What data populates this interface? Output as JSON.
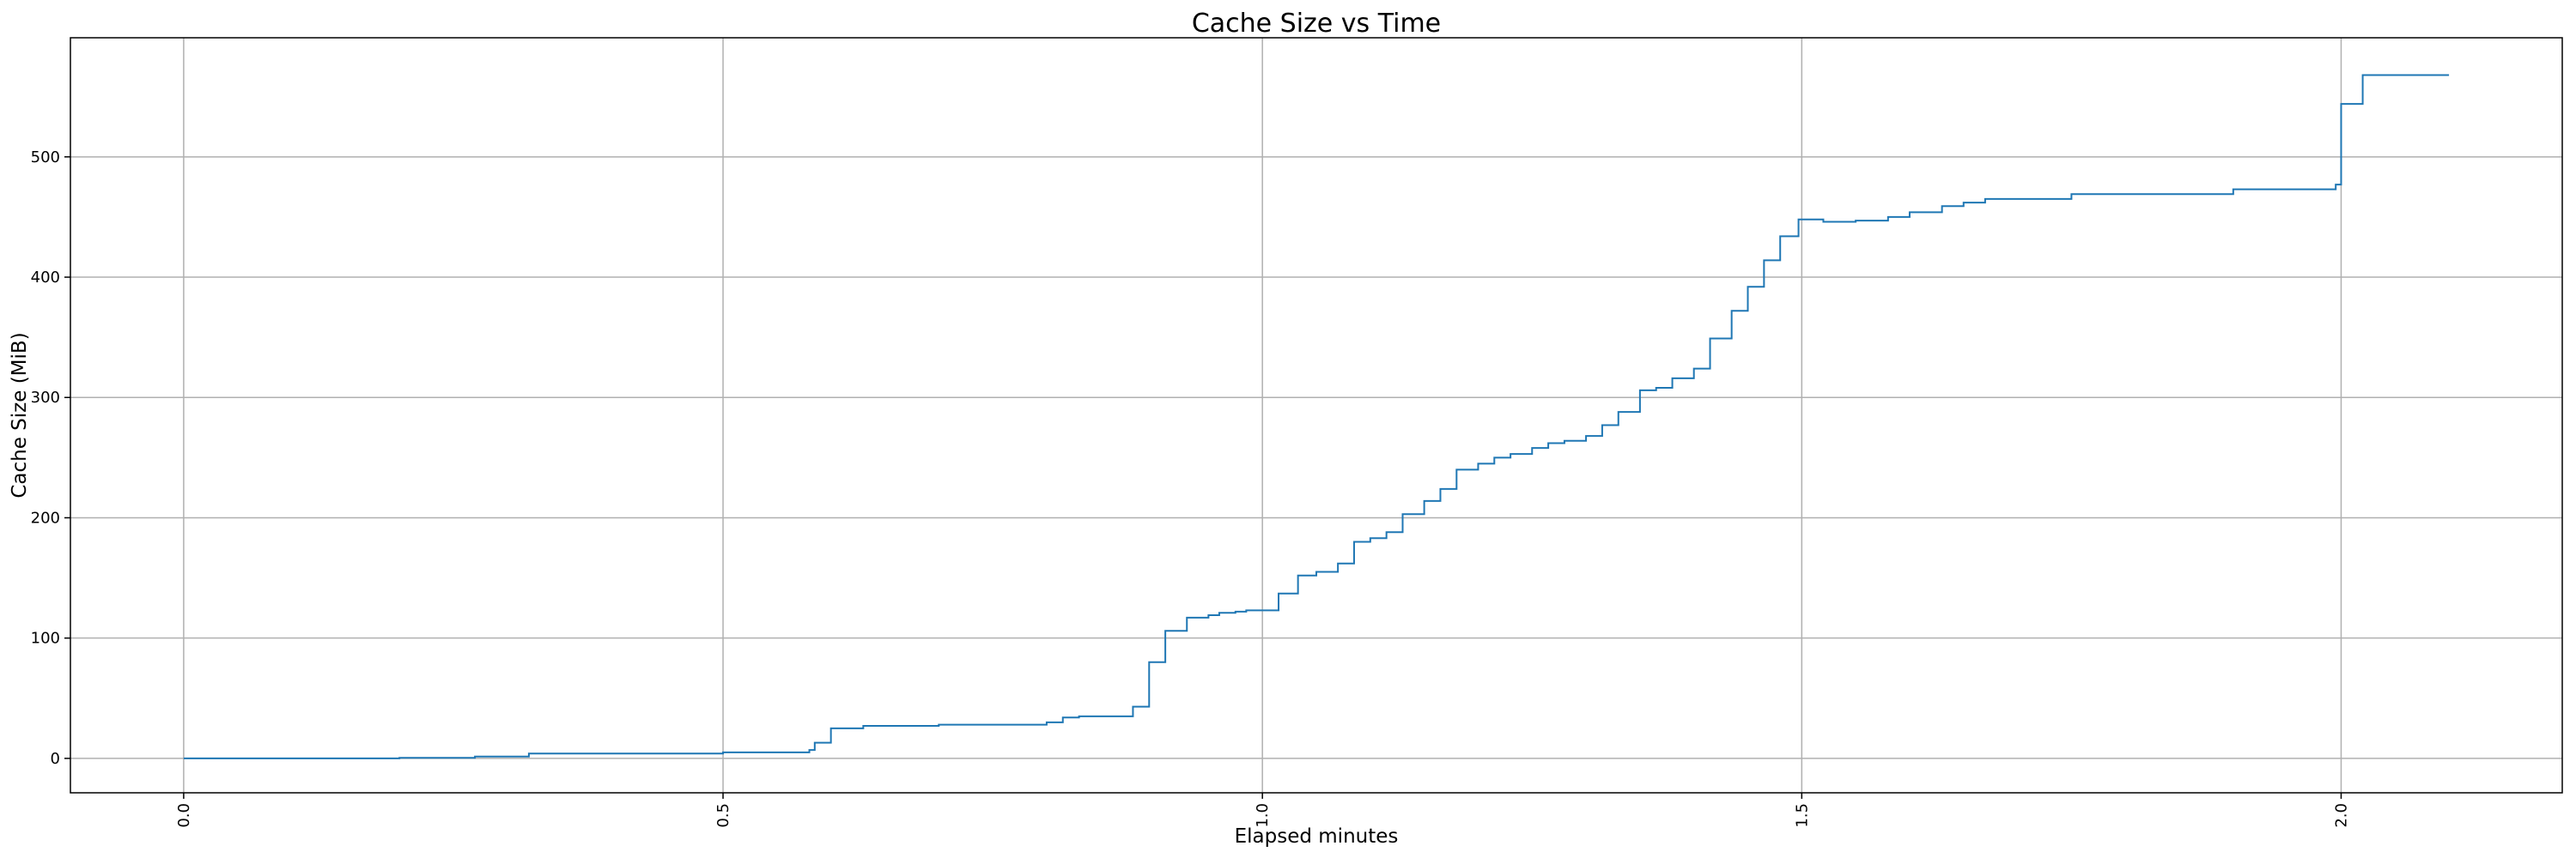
{
  "chart_data": {
    "type": "step",
    "title": "Cache Size vs Time",
    "x_label": "Elapsed minutes",
    "y_label": "Cache Size (MiB)",
    "x": [
      0.0,
      0.2,
      0.27,
      0.32,
      0.5,
      0.58,
      0.585,
      0.6,
      0.63,
      0.7,
      0.8,
      0.815,
      0.83,
      0.88,
      0.895,
      0.91,
      0.93,
      0.95,
      0.96,
      0.975,
      0.985,
      1.015,
      1.033,
      1.05,
      1.07,
      1.085,
      1.1,
      1.115,
      1.13,
      1.15,
      1.165,
      1.18,
      1.2,
      1.215,
      1.23,
      1.25,
      1.265,
      1.28,
      1.3,
      1.315,
      1.33,
      1.35,
      1.365,
      1.38,
      1.4,
      1.415,
      1.435,
      1.45,
      1.465,
      1.48,
      1.497,
      1.52,
      1.55,
      1.58,
      1.6,
      1.63,
      1.65,
      1.67,
      1.75,
      1.9,
      1.995,
      2.0,
      2.02,
      2.1
    ],
    "series": [
      {
        "color": "#1f77b4",
        "values": [
          0,
          0.5,
          1.5,
          4,
          5,
          7,
          13,
          25,
          27,
          28,
          30,
          34,
          35,
          43,
          80,
          106,
          117,
          119,
          121,
          122,
          123,
          137,
          152,
          155,
          162,
          180,
          183,
          188,
          203,
          214,
          224,
          240,
          245,
          250,
          253,
          258,
          262,
          264,
          268,
          277,
          288,
          306,
          308,
          316,
          324,
          349,
          372,
          392,
          414,
          434,
          448,
          446,
          447,
          450,
          454,
          459,
          462,
          465,
          469,
          473,
          477,
          544,
          568,
          568
        ]
      }
    ],
    "xlim": [
      -0.105,
      2.205
    ],
    "ylim": [
      -28.6,
      599
    ],
    "xticks": [
      {
        "value": 0,
        "label": "0.0"
      },
      0.5,
      {
        "value": 1,
        "label": "1.0"
      },
      1.5,
      {
        "value": 2,
        "label": "2.0"
      }
    ],
    "yticks": [
      0,
      100,
      200,
      300,
      400,
      500
    ],
    "grid": true
  }
}
